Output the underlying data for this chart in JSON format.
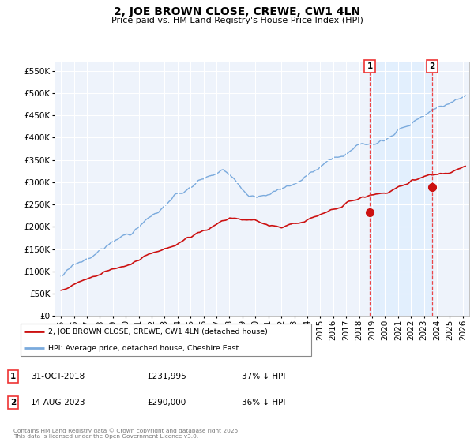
{
  "title": "2, JOE BROWN CLOSE, CREWE, CW1 4LN",
  "subtitle": "Price paid vs. HM Land Registry's House Price Index (HPI)",
  "ytick_values": [
    0,
    50000,
    100000,
    150000,
    200000,
    250000,
    300000,
    350000,
    400000,
    450000,
    500000,
    550000
  ],
  "ylim": [
    0,
    570000
  ],
  "xlim_start": 1994.5,
  "xlim_end": 2026.5,
  "hpi_color": "#7aaadd",
  "price_color": "#cc1111",
  "dashed_line_color": "#ee3333",
  "shade_color": "#ddeeff",
  "marker1_x": 2018.83,
  "marker2_x": 2023.62,
  "marker1_price": 231995,
  "marker2_price": 290000,
  "legend_entry1": "2, JOE BROWN CLOSE, CREWE, CW1 4LN (detached house)",
  "legend_entry2": "HPI: Average price, detached house, Cheshire East",
  "table_row1": [
    "1",
    "31-OCT-2018",
    "£231,995",
    "37% ↓ HPI"
  ],
  "table_row2": [
    "2",
    "14-AUG-2023",
    "£290,000",
    "36% ↓ HPI"
  ],
  "footer": "Contains HM Land Registry data © Crown copyright and database right 2025.\nThis data is licensed under the Open Government Licence v3.0.",
  "plot_bg_color": "#eef3fb",
  "grid_color": "#ffffff"
}
